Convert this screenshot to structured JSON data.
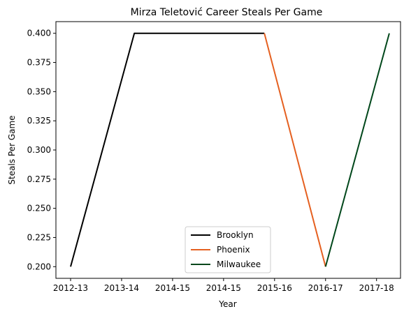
{
  "chart_data": {
    "type": "line",
    "title": "Mirza Teletović Career Steals Per Game",
    "xlabel": "Year",
    "ylabel": "Steals Per Game",
    "categories": [
      "2012-13",
      "2013-14",
      "2014-15",
      "2014-15",
      "2015-16",
      "2016-17",
      "2017-18"
    ],
    "ylim": [
      0.19,
      0.41
    ],
    "yticks": [
      0.2,
      0.225,
      0.25,
      0.275,
      0.3,
      0.325,
      0.35,
      0.375,
      0.4
    ],
    "ytick_labels": [
      "0.200",
      "0.225",
      "0.250",
      "0.275",
      "0.300",
      "0.325",
      "0.350",
      "0.375",
      "0.400"
    ],
    "grid": false,
    "legend_position": "lower-center",
    "series": [
      {
        "name": "Brooklyn",
        "color": "#000000",
        "points": [
          [
            "2012-13",
            0.2
          ],
          [
            "2013-14",
            0.4
          ],
          [
            "2015-16",
            0.4
          ]
        ]
      },
      {
        "name": "Phoenix",
        "color": "#e56020",
        "points": [
          [
            "2015-16",
            0.4
          ],
          [
            "2016-17",
            0.2
          ]
        ]
      },
      {
        "name": "Milwaukee",
        "color": "#00471b",
        "points": [
          [
            "2016-17",
            0.2
          ],
          [
            "2017-18",
            0.4
          ]
        ]
      }
    ]
  }
}
